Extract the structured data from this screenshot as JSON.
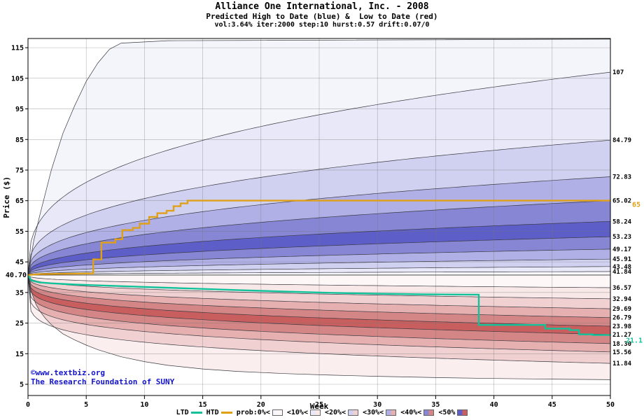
{
  "title": "Alliance One International, Inc. - 2008",
  "subtitle": "Predicted High to Date (blue) &  Low to Date (red)",
  "params": "vol:3.64% iter:2000 step:10 hurst:0.57 drift:0.07/0",
  "y_axis": {
    "label": "Price ($)",
    "ticks": [
      5,
      15,
      25,
      35,
      45,
      55,
      65,
      75,
      85,
      95,
      105,
      115
    ],
    "min": 1.34,
    "max": 118
  },
  "x_axis": {
    "label": "Week",
    "ticks": [
      0,
      5,
      10,
      15,
      20,
      25,
      30,
      35,
      40,
      45,
      50
    ],
    "min": 0,
    "max": 50
  },
  "start": {
    "label": "40.70",
    "price": 40.7
  },
  "watermark": {
    "line1": "©www.textbiz.org",
    "line2": "The Research Foundation of SUNY",
    "color": "#1414cc"
  },
  "legend": {
    "lines": [
      {
        "label": "LTD",
        "color": "#12C29A"
      },
      {
        "label": "HTD",
        "color": "#DFA018"
      }
    ],
    "bands": [
      {
        "label": "prob:0%<",
        "blue": "#f7f7fd",
        "red": "#fdf7f7"
      },
      {
        "label": "<10%<",
        "blue": "#e8e8f8",
        "red": "#f8e8e8"
      },
      {
        "label": "<20%<",
        "blue": "#d0d0f0",
        "red": "#f0d0d0"
      },
      {
        "label": "<30%<",
        "blue": "#b0b0e6",
        "red": "#e6b0b0"
      },
      {
        "label": "<40%<",
        "blue": "#8686d4",
        "red": "#d48686"
      },
      {
        "label": "<50%",
        "blue": "#5e5ec8",
        "red": "#c85e5e"
      }
    ]
  },
  "chart_data": {
    "type": "area",
    "title": "Alliance One International, Inc. - 2008",
    "xlabel": "Week",
    "ylabel": "Price ($)",
    "x_range": [
      0,
      50
    ],
    "y_range": [
      1.34,
      118
    ],
    "grid": true,
    "start_price": 40.7,
    "high_fan": {
      "description": "predicted high-to-date probability boundaries, values at week 50",
      "boundaries": [
        41.84,
        43.48,
        45.91,
        49.17,
        53.23,
        58.24,
        65.02,
        72.83,
        84.79,
        107
      ],
      "labels": [
        "41.84",
        "43.48",
        "45.91",
        "49.17",
        "53.23",
        "58.24",
        "65.02",
        "72.83",
        "84.79",
        "107"
      ],
      "band_colors": [
        "#f7f7fd",
        "#e8e8f8",
        "#d0d0f0",
        "#b0b0e6",
        "#8686d4",
        "#5e5ec8",
        "#8686d4",
        "#b0b0e6",
        "#d0d0f0",
        "#e8e8f8",
        "#f4f4fb"
      ],
      "exponent_inner": 0.45,
      "exponent_outer": 0.34,
      "extreme_path": [
        [
          0,
          40.7
        ],
        [
          0.5,
          52
        ],
        [
          1,
          60
        ],
        [
          2,
          75
        ],
        [
          3,
          87
        ],
        [
          4,
          96
        ],
        [
          5,
          104
        ],
        [
          6,
          110
        ],
        [
          7,
          114.5
        ],
        [
          8,
          116.5
        ],
        [
          12,
          117.3
        ],
        [
          50,
          117.8
        ]
      ]
    },
    "low_fan": {
      "description": "predicted low-to-date probability boundaries, values at week 50",
      "boundaries": [
        36.57,
        32.94,
        29.69,
        26.79,
        23.98,
        21.27,
        18.3,
        15.56,
        11.84
      ],
      "labels": [
        "36.57",
        "32.94",
        "29.69",
        "26.79",
        "23.98",
        "21.27",
        "18.30",
        "15.56",
        "11.84"
      ],
      "band_colors": [
        "#fdf7f7",
        "#f8e8e8",
        "#f0d0d0",
        "#e6b0b0",
        "#d48686",
        "#c85e5e",
        "#d48686",
        "#e6b0b0",
        "#f0d0d0",
        "#faeeee"
      ],
      "exponent_inner": 0.35,
      "exponent_outer": 0.17,
      "extreme_path": [
        [
          0,
          40.7
        ],
        [
          0.3,
          35
        ],
        [
          0.7,
          31
        ],
        [
          1,
          29
        ],
        [
          1.5,
          26.5
        ],
        [
          2,
          24.5
        ],
        [
          3,
          21.5
        ],
        [
          4,
          19.5
        ],
        [
          5,
          17.8
        ],
        [
          6,
          16.3
        ],
        [
          8,
          14
        ],
        [
          10,
          12.4
        ],
        [
          12,
          11.2
        ],
        [
          15,
          10
        ],
        [
          18,
          9.2
        ],
        [
          22,
          8.5
        ],
        [
          26,
          8
        ],
        [
          30,
          7.6
        ],
        [
          35,
          7.2
        ],
        [
          40,
          6.9
        ],
        [
          45,
          6.7
        ],
        [
          50,
          6.5
        ]
      ]
    },
    "htd": {
      "name": "HTD",
      "color": "#DFA018",
      "end_label": "65",
      "final": 65.02,
      "points": [
        [
          0,
          40.7
        ],
        [
          1,
          41
        ],
        [
          5.6,
          41.2
        ],
        [
          5.6,
          45.8
        ],
        [
          6.3,
          45.8
        ],
        [
          6.3,
          51.3
        ],
        [
          7.5,
          51.3
        ],
        [
          7.5,
          52.4
        ],
        [
          8.1,
          52.4
        ],
        [
          8.1,
          55.4
        ],
        [
          9,
          55.4
        ],
        [
          9,
          56.1
        ],
        [
          9.6,
          56.1
        ],
        [
          9.6,
          57.5
        ],
        [
          10.4,
          57.5
        ],
        [
          10.4,
          59.7
        ],
        [
          11.1,
          59.7
        ],
        [
          11.1,
          60.9
        ],
        [
          11.9,
          60.9
        ],
        [
          11.9,
          61.7
        ],
        [
          12.5,
          61.7
        ],
        [
          12.5,
          63.2
        ],
        [
          13.1,
          63.2
        ],
        [
          13.1,
          64.1
        ],
        [
          13.7,
          64.1
        ],
        [
          13.7,
          65.02
        ],
        [
          50,
          65.02
        ]
      ]
    },
    "ltd": {
      "name": "LTD",
      "color": "#12C29A",
      "end_label": "21.1",
      "final": 21.1,
      "points": [
        [
          0,
          40.7
        ],
        [
          0.3,
          38.9
        ],
        [
          1,
          38.3
        ],
        [
          2,
          38
        ],
        [
          4,
          37.6
        ],
        [
          7,
          37.2
        ],
        [
          10,
          36.8
        ],
        [
          14,
          36.3
        ],
        [
          18,
          35.8
        ],
        [
          22,
          35.3
        ],
        [
          26,
          34.9
        ],
        [
          30,
          34.6
        ],
        [
          34,
          34.4
        ],
        [
          38.7,
          34.3
        ],
        [
          38.7,
          24.4
        ],
        [
          44.4,
          24.4
        ],
        [
          44.4,
          23.2
        ],
        [
          46.5,
          23.2
        ],
        [
          46.5,
          22.7
        ],
        [
          47.3,
          22.7
        ],
        [
          47.3,
          21.3
        ],
        [
          48.5,
          21.3
        ],
        [
          48.5,
          21.1
        ],
        [
          50,
          21.1
        ]
      ]
    }
  }
}
